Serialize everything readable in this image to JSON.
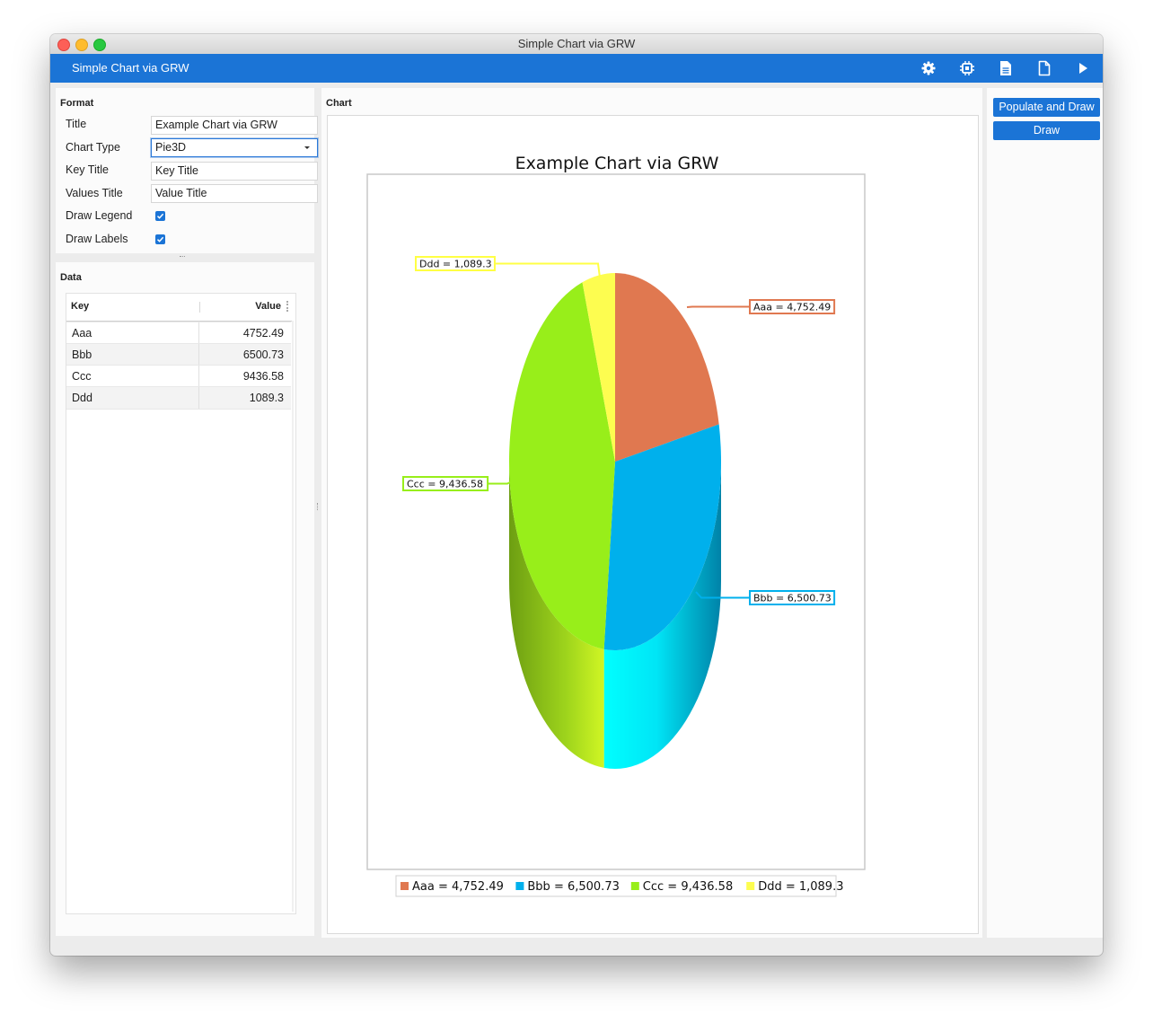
{
  "window": {
    "title": "Simple Chart via GRW"
  },
  "appbar": {
    "title": "Simple Chart via GRW",
    "tools": [
      "gear-icon",
      "chip-icon",
      "document-icon",
      "blank-page-icon",
      "play-icon"
    ]
  },
  "format": {
    "section": "Format",
    "title_label": "Title",
    "title_value": "Example Chart via GRW",
    "chart_type_label": "Chart Type",
    "chart_type_value": "Pie3D",
    "key_title_label": "Key Title",
    "key_title_value": "Key Title",
    "values_title_label": "Values Title",
    "values_title_value": "Value Title",
    "draw_legend_label": "Draw Legend",
    "draw_legend": true,
    "draw_labels_label": "Draw Labels",
    "draw_labels": true
  },
  "data_panel": {
    "section": "Data",
    "col_key": "Key",
    "col_value": "Value",
    "rows": [
      {
        "key": "Aaa",
        "value": "4752.49"
      },
      {
        "key": "Bbb",
        "value": "6500.73"
      },
      {
        "key": "Ccc",
        "value": "9436.58"
      },
      {
        "key": "Ddd",
        "value": "1089.3"
      }
    ]
  },
  "chart_panel": {
    "section": "Chart"
  },
  "actions": {
    "populate_draw": "Populate and Draw",
    "draw": "Draw"
  },
  "colors": {
    "accent": "#1b74d6",
    "aaa": "#e07850",
    "bbb": "#00b0ec",
    "ccc": "#98ee1a",
    "ddd": "#fdfd50"
  },
  "chart_data": {
    "type": "pie",
    "title": "Example Chart via GRW",
    "categories": [
      "Aaa",
      "Bbb",
      "Ccc",
      "Ddd"
    ],
    "values": [
      4752.49,
      6500.73,
      9436.58,
      1089.3
    ],
    "slice_labels": [
      "Aaa = 4,752.49",
      "Bbb = 6,500.73",
      "Ccc = 9,436.58",
      "Ddd = 1,089.3"
    ],
    "legend": [
      "Aaa = 4,752.49",
      "Bbb = 6,500.73",
      "Ccc = 9,436.58",
      "Ddd = 1,089.3"
    ],
    "legend_position": "bottom",
    "style": "3d"
  }
}
